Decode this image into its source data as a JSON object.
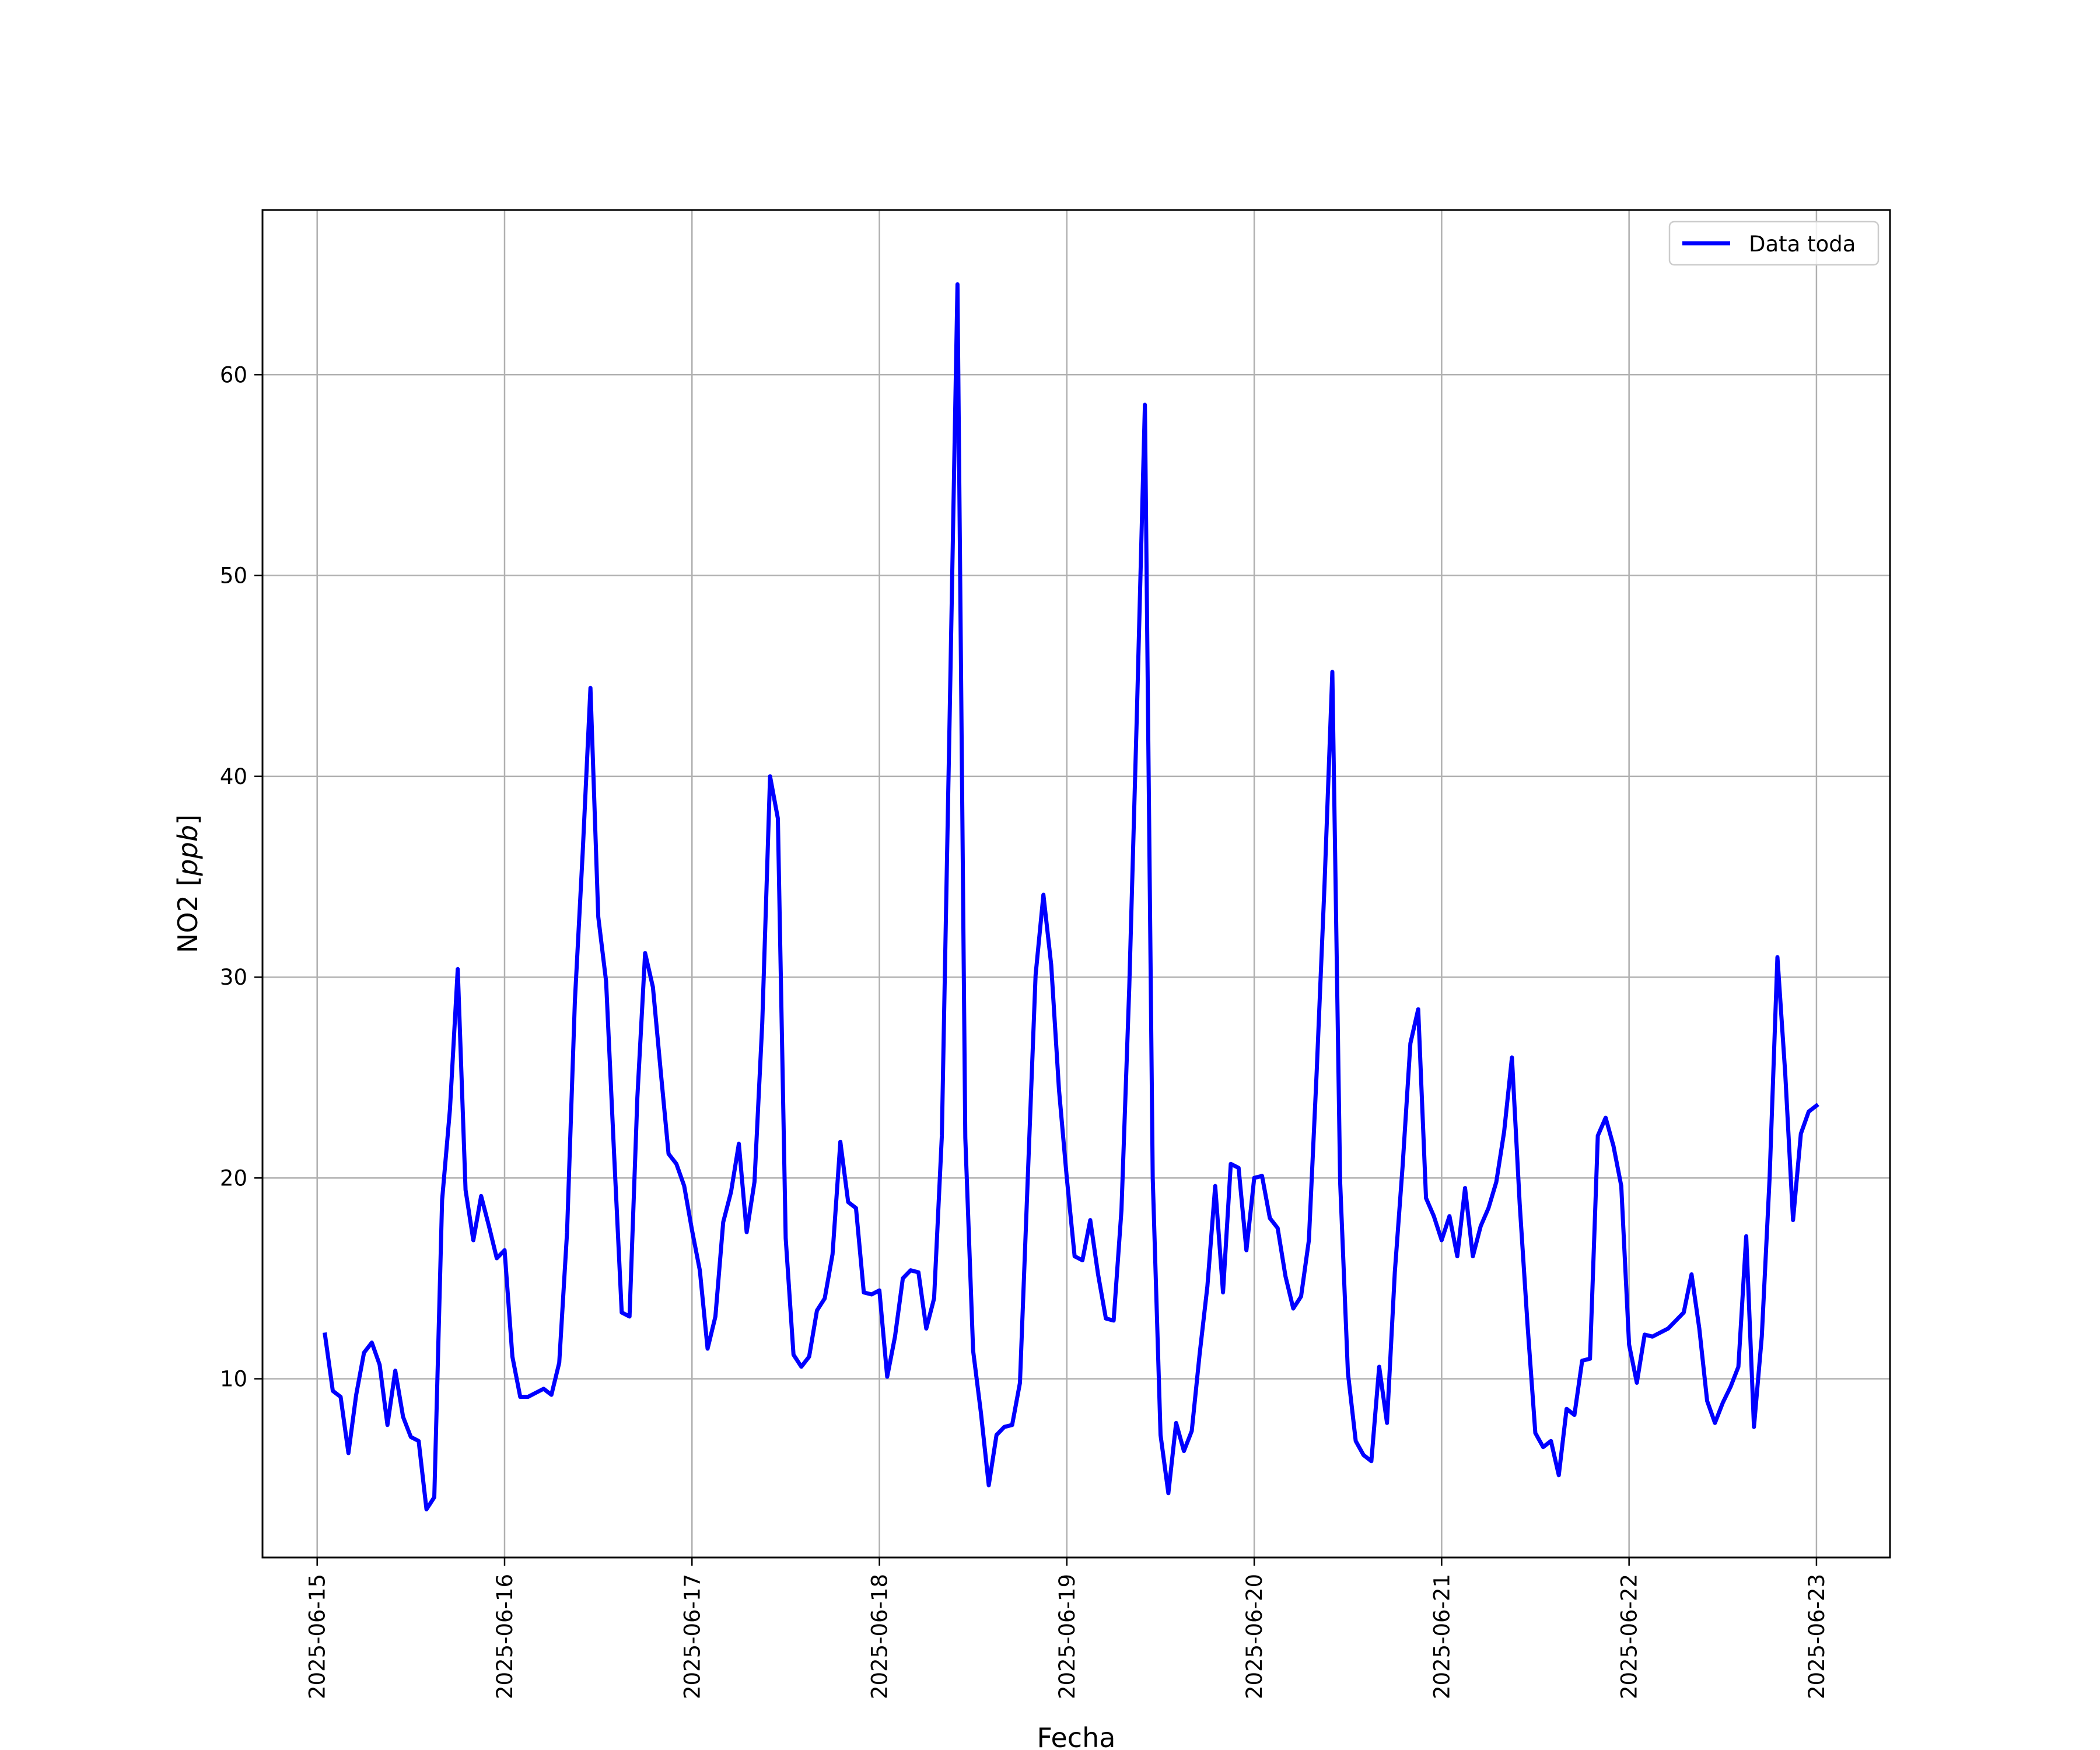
{
  "chart_data": {
    "type": "line",
    "title": "",
    "xlabel": "Fecha",
    "ylabel": "NO2 [ppb]",
    "ylabel_main": "NO2 [",
    "ylabel_italic": "ppb",
    "ylabel_close": "]",
    "x_ticks": [
      "2025-06-15",
      "2025-06-16",
      "2025-06-17",
      "2025-06-18",
      "2025-06-19",
      "2025-06-20",
      "2025-06-21",
      "2025-06-22",
      "2025-06-23"
    ],
    "y_ticks": [
      10,
      20,
      30,
      40,
      50,
      60
    ],
    "xlim": [
      "2025-06-14 17:00",
      "2025-06-23 09:25"
    ],
    "ylim": [
      1.1,
      68.2
    ],
    "grid": true,
    "legend_position": "top-right",
    "series": [
      {
        "name": "Data toda",
        "color": "#0000ff",
        "x": [
          "2025-06-15 01:00",
          "2025-06-15 02:00",
          "2025-06-15 03:00",
          "2025-06-15 04:00",
          "2025-06-15 05:00",
          "2025-06-15 06:00",
          "2025-06-15 07:00",
          "2025-06-15 08:00",
          "2025-06-15 09:00",
          "2025-06-15 10:00",
          "2025-06-15 11:00",
          "2025-06-15 12:00",
          "2025-06-15 13:00",
          "2025-06-15 14:00",
          "2025-06-15 15:00",
          "2025-06-15 16:00",
          "2025-06-15 17:00",
          "2025-06-15 18:00",
          "2025-06-15 19:00",
          "2025-06-15 20:00",
          "2025-06-15 21:00",
          "2025-06-15 22:00",
          "2025-06-15 23:00",
          "2025-06-16 00:00",
          "2025-06-16 01:00",
          "2025-06-16 02:00",
          "2025-06-16 03:00",
          "2025-06-16 04:00",
          "2025-06-16 05:00",
          "2025-06-16 06:00",
          "2025-06-16 07:00",
          "2025-06-16 08:00",
          "2025-06-16 09:00",
          "2025-06-16 10:00",
          "2025-06-16 11:00",
          "2025-06-16 12:00",
          "2025-06-16 13:00",
          "2025-06-16 14:00",
          "2025-06-16 15:00",
          "2025-06-16 16:00",
          "2025-06-16 17:00",
          "2025-06-16 18:00",
          "2025-06-16 19:00",
          "2025-06-16 20:00",
          "2025-06-16 21:00",
          "2025-06-16 22:00",
          "2025-06-16 23:00",
          "2025-06-17 00:00",
          "2025-06-17 01:00",
          "2025-06-17 02:00",
          "2025-06-17 03:00",
          "2025-06-17 04:00",
          "2025-06-17 05:00",
          "2025-06-17 06:00",
          "2025-06-17 07:00",
          "2025-06-17 08:00",
          "2025-06-17 09:00",
          "2025-06-17 10:00",
          "2025-06-17 11:00",
          "2025-06-17 12:00",
          "2025-06-17 13:00",
          "2025-06-17 14:00",
          "2025-06-17 15:00",
          "2025-06-17 16:00",
          "2025-06-17 17:00",
          "2025-06-17 18:00",
          "2025-06-17 19:00",
          "2025-06-17 20:00",
          "2025-06-17 21:00",
          "2025-06-17 22:00",
          "2025-06-17 23:00",
          "2025-06-18 00:00",
          "2025-06-18 01:00",
          "2025-06-18 02:00",
          "2025-06-18 03:00",
          "2025-06-18 04:00",
          "2025-06-18 05:00",
          "2025-06-18 06:00",
          "2025-06-18 07:00",
          "2025-06-18 08:00",
          "2025-06-18 09:00",
          "2025-06-18 10:00",
          "2025-06-18 11:00",
          "2025-06-18 12:00",
          "2025-06-18 13:00",
          "2025-06-18 14:00",
          "2025-06-18 15:00",
          "2025-06-18 16:00",
          "2025-06-18 17:00",
          "2025-06-18 18:00",
          "2025-06-18 19:00",
          "2025-06-18 20:00",
          "2025-06-18 21:00",
          "2025-06-18 22:00",
          "2025-06-18 23:00",
          "2025-06-19 00:00",
          "2025-06-19 01:00",
          "2025-06-19 02:00",
          "2025-06-19 03:00",
          "2025-06-19 04:00",
          "2025-06-19 05:00",
          "2025-06-19 06:00",
          "2025-06-19 07:00",
          "2025-06-19 08:00",
          "2025-06-19 09:00",
          "2025-06-19 10:00",
          "2025-06-19 11:00",
          "2025-06-19 12:00",
          "2025-06-19 13:00",
          "2025-06-19 14:00",
          "2025-06-19 15:00",
          "2025-06-19 16:00",
          "2025-06-19 17:00",
          "2025-06-19 18:00",
          "2025-06-19 19:00",
          "2025-06-19 20:00",
          "2025-06-19 21:00",
          "2025-06-19 22:00",
          "2025-06-19 23:00",
          "2025-06-20 00:00",
          "2025-06-20 01:00",
          "2025-06-20 02:00",
          "2025-06-20 03:00",
          "2025-06-20 04:00",
          "2025-06-20 05:00",
          "2025-06-20 06:00",
          "2025-06-20 07:00",
          "2025-06-20 08:00",
          "2025-06-20 09:00",
          "2025-06-20 10:00",
          "2025-06-20 11:00",
          "2025-06-20 12:00",
          "2025-06-20 13:00",
          "2025-06-20 14:00",
          "2025-06-20 15:00",
          "2025-06-20 16:00",
          "2025-06-20 17:00",
          "2025-06-20 18:00",
          "2025-06-20 19:00",
          "2025-06-20 20:00",
          "2025-06-20 21:00",
          "2025-06-20 22:00",
          "2025-06-20 23:00",
          "2025-06-21 00:00",
          "2025-06-21 01:00",
          "2025-06-21 02:00",
          "2025-06-21 03:00",
          "2025-06-21 04:00",
          "2025-06-21 05:00",
          "2025-06-21 06:00",
          "2025-06-21 07:00",
          "2025-06-21 08:00",
          "2025-06-21 09:00",
          "2025-06-21 10:00",
          "2025-06-21 11:00",
          "2025-06-21 12:00",
          "2025-06-21 13:00",
          "2025-06-21 14:00",
          "2025-06-21 15:00",
          "2025-06-21 16:00",
          "2025-06-21 17:00",
          "2025-06-21 18:00",
          "2025-06-21 19:00",
          "2025-06-21 20:00",
          "2025-06-21 21:00",
          "2025-06-21 22:00",
          "2025-06-21 23:00",
          "2025-06-22 00:00",
          "2025-06-22 01:00",
          "2025-06-22 02:00",
          "2025-06-22 03:00",
          "2025-06-22 04:00",
          "2025-06-22 05:00",
          "2025-06-22 06:00",
          "2025-06-22 07:00",
          "2025-06-22 08:00",
          "2025-06-22 09:00",
          "2025-06-22 10:00",
          "2025-06-22 11:00",
          "2025-06-22 12:00",
          "2025-06-22 13:00",
          "2025-06-22 14:00",
          "2025-06-22 15:00",
          "2025-06-22 16:00",
          "2025-06-22 17:00",
          "2025-06-22 18:00",
          "2025-06-22 19:00",
          "2025-06-22 20:00",
          "2025-06-22 21:00",
          "2025-06-22 22:00",
          "2025-06-22 23:00",
          "2025-06-23 00:00"
        ],
        "values": [
          12.2,
          9.4,
          9.1,
          6.3,
          9.2,
          11.3,
          11.8,
          10.7,
          7.7,
          10.4,
          8.1,
          7.1,
          6.9,
          3.5,
          4.1,
          18.9,
          23.4,
          30.4,
          19.4,
          16.9,
          19.1,
          17.6,
          16.0,
          16.4,
          11.1,
          9.1,
          9.1,
          9.3,
          9.5,
          9.2,
          10.8,
          17.3,
          28.8,
          36.2,
          44.4,
          33.0,
          29.8,
          21.4,
          13.3,
          13.1,
          24.0,
          31.2,
          29.5,
          25.3,
          21.2,
          20.7,
          19.6,
          17.4,
          15.4,
          11.5,
          13.1,
          17.8,
          19.3,
          21.7,
          17.3,
          19.8,
          27.7,
          40.0,
          37.9,
          17.0,
          11.2,
          10.6,
          11.1,
          13.4,
          14.0,
          16.2,
          21.8,
          18.8,
          18.5,
          14.3,
          14.2,
          14.4,
          10.1,
          12.1,
          15.0,
          15.4,
          15.3,
          12.5,
          14.0,
          22.1,
          43.0,
          64.5,
          22.0,
          11.4,
          8.3,
          4.7,
          7.2,
          7.6,
          7.7,
          9.8,
          20.0,
          30.1,
          34.1,
          30.6,
          24.4,
          20.0,
          16.1,
          15.9,
          17.9,
          15.2,
          13.0,
          12.9,
          18.4,
          29.5,
          43.5,
          58.5,
          20.0,
          7.2,
          4.3,
          7.8,
          6.4,
          7.4,
          11.2,
          14.6,
          19.6,
          14.3,
          20.7,
          20.5,
          16.4,
          20.0,
          20.1,
          18.0,
          17.5,
          15.1,
          13.5,
          14.1,
          16.9,
          25.3,
          34.6,
          45.2,
          19.8,
          10.3,
          6.9,
          6.2,
          5.9,
          10.6,
          7.8,
          15.3,
          20.6,
          26.7,
          28.4,
          19.0,
          18.1,
          16.9,
          18.1,
          16.1,
          19.5,
          16.1,
          17.6,
          18.5,
          19.8,
          22.3,
          26.0,
          18.7,
          12.7,
          7.3,
          6.6,
          6.9,
          5.2,
          8.5,
          8.2,
          10.9,
          11.0,
          22.1,
          23.0,
          21.6,
          19.6,
          11.7,
          9.8,
          12.2,
          12.1,
          12.3,
          12.5,
          12.9,
          13.3,
          15.2,
          12.5,
          8.9,
          7.8,
          8.8,
          9.6,
          10.6,
          17.1,
          7.6,
          12.1,
          20.0,
          31.0,
          25.2,
          17.9,
          22.2,
          23.3,
          23.6
        ]
      }
    ]
  }
}
